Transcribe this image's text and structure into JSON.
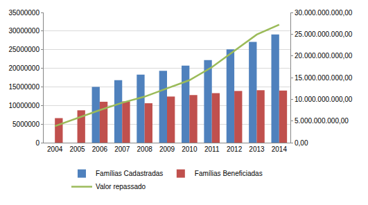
{
  "chart_data": {
    "type": "bar",
    "categories": [
      "2004",
      "2005",
      "2006",
      "2007",
      "2008",
      "2009",
      "2010",
      "2011",
      "2012",
      "2013",
      "2014"
    ],
    "series": [
      {
        "name": "Famílias Cadastradas",
        "type": "bar",
        "color": "#4f81bd",
        "values": [
          null,
          null,
          15000000,
          16800000,
          18300000,
          19300000,
          20700000,
          22200000,
          25100000,
          27100000,
          29100000
        ]
      },
      {
        "name": "Famílias Beneficiadas",
        "type": "bar",
        "color": "#c0504d",
        "values": [
          6600000,
          8700000,
          11000000,
          11100000,
          10600000,
          12400000,
          12800000,
          13300000,
          13900000,
          14100000,
          14000000
        ]
      },
      {
        "name": "Valor repassado",
        "type": "line",
        "axis": "y2",
        "color": "#9bbb59",
        "values": [
          3800000000,
          5700000000,
          7500000000,
          9200000000,
          10600000000,
          12500000000,
          14400000000,
          17400000000,
          21200000000,
          24900000000,
          27200000000
        ]
      }
    ],
    "ylim": [
      0,
      35000000
    ],
    "yticks": [
      0,
      5000000,
      10000000,
      15000000,
      20000000,
      25000000,
      30000000,
      35000000
    ],
    "y2lim": [
      0,
      30000000000
    ],
    "y2ticks": [
      {
        "value": 0,
        "label": "0,00"
      },
      {
        "value": 5000000000,
        "label": "5.000.000.000,00"
      },
      {
        "value": 10000000000,
        "label": "10.000.000.000,00"
      },
      {
        "value": 15000000000,
        "label": "15.000.000.000,00"
      },
      {
        "value": 20000000000,
        "label": "20.000.000.000,00"
      },
      {
        "value": 25000000000,
        "label": "25.000.000.000,00"
      },
      {
        "value": 30000000000,
        "label": "30.000.000.000,00"
      }
    ],
    "grid": true,
    "legend": "bottom"
  }
}
